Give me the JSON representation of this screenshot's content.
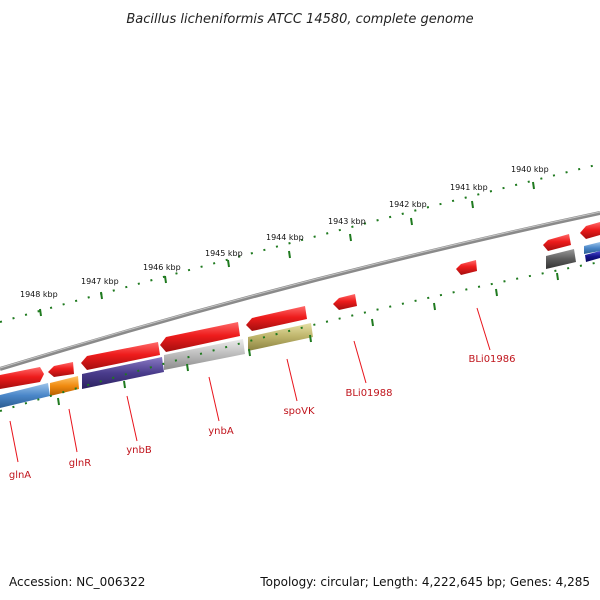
{
  "title": "Bacillus licheniformis ATCC 14580, complete genome",
  "accession": "Accession: NC_006322",
  "topology": "Topology: circular; Length: 4,222,645 bp; Genes: 4,285",
  "colors": {
    "forward_feature": "#e8141c",
    "backbone": "#8c8c8c",
    "ticks": "#1f7a1f",
    "label": "#c0141c"
  },
  "kbp_labels": [
    "1948 kbp",
    "1947 kbp",
    "1946 kbp",
    "1945 kbp",
    "1944 kbp",
    "1943 kbp",
    "1942 kbp",
    "1941 kbp",
    "1940 kbp"
  ],
  "gene_labels": [
    "glnA",
    "glnR",
    "ynbB",
    "ynbA",
    "spoVK",
    "BLi01988",
    "BLi01986"
  ]
}
